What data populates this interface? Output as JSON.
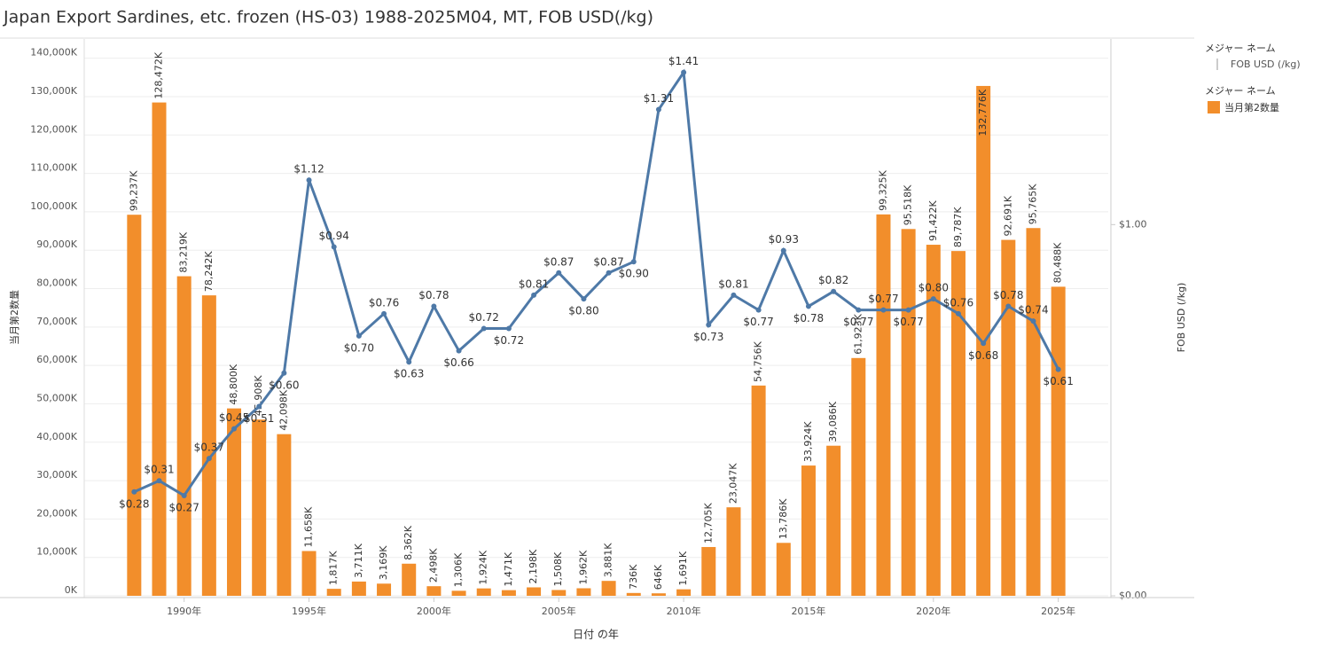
{
  "chart_data": {
    "type": "bar_line",
    "title": "Japan Export Sardines, etc. frozen (HS-03) 1988-2025M04, MT, FOB USD(/kg)",
    "xlabel": "日付 の年",
    "ylabel": "当月第2数量",
    "y2label": "FOB USD (/kg)",
    "legend_titles": [
      "メジャー ネーム",
      "メジャー ネーム"
    ],
    "x": [
      1988,
      1989,
      1990,
      1991,
      1992,
      1993,
      1994,
      1995,
      1996,
      1997,
      1998,
      1999,
      2000,
      2001,
      2002,
      2003,
      2004,
      2005,
      2006,
      2007,
      2008,
      2009,
      2010,
      2011,
      2012,
      2013,
      2014,
      2015,
      2016,
      2017,
      2018,
      2019,
      2020,
      2021,
      2022,
      2023,
      2024,
      2025
    ],
    "xlim": [
      1986,
      2027
    ],
    "xticks": [
      {
        "value": 1990,
        "label": "1990年"
      },
      {
        "value": 1995,
        "label": "1995年"
      },
      {
        "value": 2000,
        "label": "2000年"
      },
      {
        "value": 2005,
        "label": "2005年"
      },
      {
        "value": 2010,
        "label": "2010年"
      },
      {
        "value": 2015,
        "label": "2015年"
      },
      {
        "value": 2020,
        "label": "2020年"
      },
      {
        "value": 2025,
        "label": "2025年"
      }
    ],
    "ylim": [
      0,
      145000
    ],
    "yticks": [
      {
        "value": 0,
        "label": "0K"
      },
      {
        "value": 10000,
        "label": "10,000K"
      },
      {
        "value": 20000,
        "label": "20,000K"
      },
      {
        "value": 30000,
        "label": "30,000K"
      },
      {
        "value": 40000,
        "label": "40,000K"
      },
      {
        "value": 50000,
        "label": "50,000K"
      },
      {
        "value": 60000,
        "label": "60,000K"
      },
      {
        "value": 70000,
        "label": "70,000K"
      },
      {
        "value": 80000,
        "label": "80,000K"
      },
      {
        "value": 90000,
        "label": "90,000K"
      },
      {
        "value": 100000,
        "label": "100,000K"
      },
      {
        "value": 110000,
        "label": "110,000K"
      },
      {
        "value": 120000,
        "label": "120,000K"
      },
      {
        "value": 130000,
        "label": "130,000K"
      },
      {
        "value": 140000,
        "label": "140,000K"
      }
    ],
    "y2lim": [
      0,
      1.5
    ],
    "y2ticks": [
      {
        "value": 0,
        "label": "$0.00"
      },
      {
        "value": 1,
        "label": "$1.00"
      }
    ],
    "grid": true,
    "series": [
      {
        "name": "当月第2数量",
        "type": "bar",
        "color": "#f28e2b",
        "values": [
          99237,
          128472,
          83219,
          78242,
          48800,
          45908,
          42098,
          11658,
          1817,
          3711,
          3169,
          8362,
          2498,
          1306,
          1924,
          1471,
          2198,
          1508,
          1962,
          3881,
          736,
          646,
          1691,
          12705,
          23047,
          54756,
          13786,
          33924,
          39086,
          61923,
          99325,
          95518,
          91422,
          89787,
          132776,
          92691,
          95765,
          80488
        ],
        "value_labels": [
          "99,237K",
          "128,472K",
          "83,219K",
          "78,242K",
          "48,800K",
          "45,908K",
          "42,098K",
          "11,658K",
          "1,817K",
          "3,711K",
          "3,169K",
          "8,362K",
          "2,498K",
          "1,306K",
          "1,924K",
          "1,471K",
          "2,198K",
          "1,508K",
          "1,962K",
          "3,881K",
          "736K",
          "646K",
          "1,691K",
          "12,705K",
          "23,047K",
          "54,756K",
          "13,786K",
          "33,924K",
          "39,086K",
          "61,923K",
          "99,325K",
          "95,518K",
          "91,422K",
          "89,787K",
          "132,776K",
          "92,691K",
          "95,765K",
          "80,488K"
        ]
      },
      {
        "name": "FOB USD (/kg)",
        "type": "line",
        "axis": "y2",
        "color": "#4e79a7",
        "values": [
          0.28,
          0.31,
          0.27,
          0.37,
          0.45,
          0.51,
          0.6,
          1.12,
          0.94,
          0.7,
          0.76,
          0.63,
          0.78,
          0.66,
          0.72,
          0.72,
          0.81,
          0.87,
          0.8,
          0.87,
          0.9,
          1.31,
          1.41,
          0.73,
          0.81,
          0.77,
          0.93,
          0.78,
          0.82,
          0.77,
          0.77,
          0.77,
          0.8,
          0.76,
          0.68,
          0.78,
          0.74,
          0.61
        ],
        "value_labels": [
          "$0.28",
          "$0.31",
          "$0.27",
          "$0.37",
          "$0.45",
          "$0.51",
          "$0.60",
          "$1.12",
          "$0.94",
          "$0.70",
          "$0.76",
          "$0.63",
          "$0.78",
          "$0.66",
          "$0.72",
          "$0.72",
          "$0.81",
          "$0.87",
          "$0.80",
          "$0.87",
          "$0.90",
          "$1.31",
          "$1.41",
          "$0.73",
          "$0.81",
          "$0.77",
          "$0.93",
          "$0.78",
          "$0.82",
          "$0.77",
          "$0.77",
          "$0.77",
          "$0.80",
          "$0.76",
          "$0.68",
          "$0.78",
          "$0.74",
          "$0.61"
        ]
      }
    ]
  }
}
